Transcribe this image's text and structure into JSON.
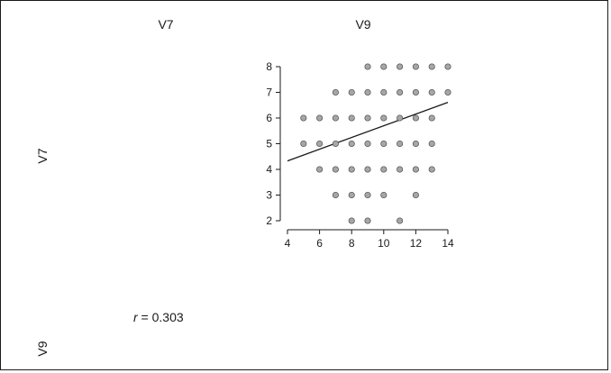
{
  "matrix": {
    "col_labels": [
      "V7",
      "V9"
    ],
    "row_labels": [
      "V7",
      "V9"
    ],
    "correlation": {
      "symbol": "r",
      "text": " = 0.303"
    }
  },
  "colors": {
    "point_fill": "#a6a6a6",
    "point_stroke": "#4d4d4d",
    "line": "#1a1a1a",
    "axis": "#1a1a1a"
  },
  "chart_data": {
    "type": "scatter",
    "title": "",
    "xlabel": "V9",
    "ylabel": "V7",
    "xlim": [
      4,
      14
    ],
    "ylim": [
      2,
      8
    ],
    "xticks": [
      4,
      6,
      8,
      10,
      12,
      14
    ],
    "yticks": [
      2,
      3,
      4,
      5,
      6,
      7,
      8
    ],
    "grid": false,
    "points": [
      [
        9,
        8
      ],
      [
        10,
        8
      ],
      [
        11,
        8
      ],
      [
        12,
        8
      ],
      [
        13,
        8
      ],
      [
        14,
        8
      ],
      [
        7,
        7
      ],
      [
        8,
        7
      ],
      [
        9,
        7
      ],
      [
        10,
        7
      ],
      [
        11,
        7
      ],
      [
        12,
        7
      ],
      [
        13,
        7
      ],
      [
        14,
        7
      ],
      [
        5,
        6
      ],
      [
        6,
        6
      ],
      [
        7,
        6
      ],
      [
        8,
        6
      ],
      [
        9,
        6
      ],
      [
        10,
        6
      ],
      [
        11,
        6
      ],
      [
        12,
        6
      ],
      [
        13,
        6
      ],
      [
        5,
        5
      ],
      [
        6,
        5
      ],
      [
        7,
        5
      ],
      [
        8,
        5
      ],
      [
        9,
        5
      ],
      [
        10,
        5
      ],
      [
        11,
        5
      ],
      [
        12,
        5
      ],
      [
        13,
        5
      ],
      [
        6,
        4
      ],
      [
        7,
        4
      ],
      [
        8,
        4
      ],
      [
        9,
        4
      ],
      [
        10,
        4
      ],
      [
        11,
        4
      ],
      [
        12,
        4
      ],
      [
        13,
        4
      ],
      [
        7,
        3
      ],
      [
        8,
        3
      ],
      [
        9,
        3
      ],
      [
        10,
        3
      ],
      [
        12,
        3
      ],
      [
        8,
        2
      ],
      [
        9,
        2
      ],
      [
        11,
        2
      ]
    ],
    "regression_line": {
      "x": [
        4,
        14
      ],
      "y": [
        4.33,
        6.61
      ]
    }
  }
}
